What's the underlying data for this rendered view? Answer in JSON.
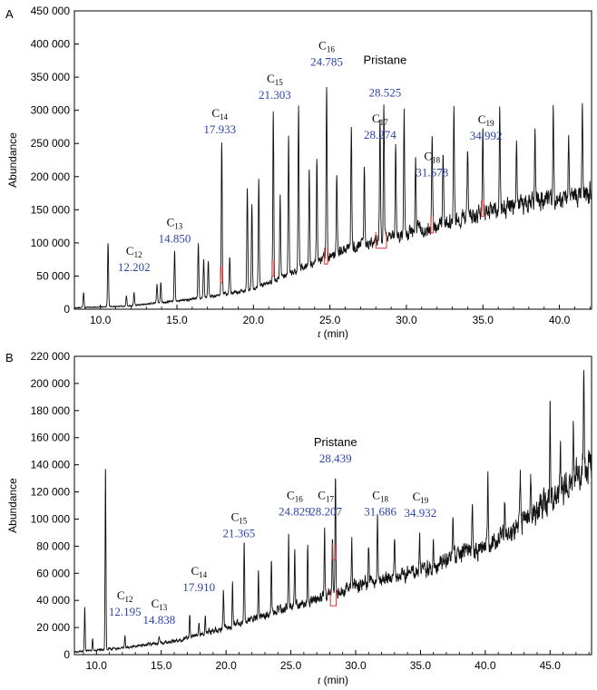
{
  "chart_data": [
    {
      "type": "line",
      "panel_label": "A",
      "xlabel_var": "t",
      "xlabel_unit": "(min)",
      "ylabel": "Abundance",
      "xlim": [
        8.3,
        42.1
      ],
      "ylim": [
        0,
        450000
      ],
      "x_ticks": [
        10.0,
        15.0,
        20.0,
        25.0,
        30.0,
        35.0,
        40.0
      ],
      "x_tick_labels": [
        "10.0",
        "15.0",
        "20.0",
        "25.0",
        "30.0",
        "35.0",
        "40.0"
      ],
      "y_ticks": [
        0,
        50000,
        100000,
        150000,
        200000,
        250000,
        300000,
        350000,
        400000,
        450000
      ],
      "y_tick_labels": [
        "0",
        "50 000",
        "100 000",
        "150 000",
        "200 000",
        "250 000",
        "300 000",
        "350 000",
        "400 000",
        "450 000"
      ],
      "baseline": [
        [
          8.3,
          2000
        ],
        [
          12,
          5000
        ],
        [
          16,
          15000
        ],
        [
          20,
          30000
        ],
        [
          23,
          60000
        ],
        [
          26,
          90000
        ],
        [
          30,
          115000
        ],
        [
          34,
          140000
        ],
        [
          38,
          160000
        ],
        [
          42.1,
          175000
        ]
      ],
      "peaks": [
        {
          "x": 8.9,
          "y": 25000
        },
        {
          "x": 10.5,
          "y": 100000
        },
        {
          "x": 11.7,
          "y": 20000
        },
        {
          "x": 12.2,
          "y": 25000
        },
        {
          "x": 13.7,
          "y": 38000
        },
        {
          "x": 13.95,
          "y": 40000
        },
        {
          "x": 14.85,
          "y": 88000
        },
        {
          "x": 16.4,
          "y": 100000
        },
        {
          "x": 16.75,
          "y": 75000
        },
        {
          "x": 17.05,
          "y": 70000
        },
        {
          "x": 17.93,
          "y": 253000
        },
        {
          "x": 18.45,
          "y": 80000
        },
        {
          "x": 19.6,
          "y": 185000
        },
        {
          "x": 19.9,
          "y": 160000
        },
        {
          "x": 20.35,
          "y": 200000
        },
        {
          "x": 21.3,
          "y": 300000
        },
        {
          "x": 21.75,
          "y": 170000
        },
        {
          "x": 22.3,
          "y": 260000
        },
        {
          "x": 22.95,
          "y": 305000
        },
        {
          "x": 23.65,
          "y": 215000
        },
        {
          "x": 24.15,
          "y": 230000
        },
        {
          "x": 24.785,
          "y": 335000
        },
        {
          "x": 25.45,
          "y": 200000
        },
        {
          "x": 26.4,
          "y": 275000
        },
        {
          "x": 27.25,
          "y": 215000
        },
        {
          "x": 28.274,
          "y": 285000
        },
        {
          "x": 28.525,
          "y": 305000
        },
        {
          "x": 29.3,
          "y": 250000
        },
        {
          "x": 29.85,
          "y": 300000
        },
        {
          "x": 30.6,
          "y": 230000
        },
        {
          "x": 31.678,
          "y": 265000
        },
        {
          "x": 32.4,
          "y": 230000
        },
        {
          "x": 33.1,
          "y": 300000
        },
        {
          "x": 34.0,
          "y": 245000
        },
        {
          "x": 34.992,
          "y": 270000
        },
        {
          "x": 36.1,
          "y": 300000
        },
        {
          "x": 37.2,
          "y": 250000
        },
        {
          "x": 38.4,
          "y": 265000
        },
        {
          "x": 39.6,
          "y": 300000
        },
        {
          "x": 40.6,
          "y": 260000
        },
        {
          "x": 41.5,
          "y": 300000
        },
        {
          "x": 42.0,
          "y": 190000
        }
      ],
      "annotations": [
        {
          "name": "C",
          "sub": "12",
          "time": "12.202",
          "x": 12.2,
          "y": 52000
        },
        {
          "name": "C",
          "sub": "13",
          "time": "14.850",
          "x": 14.85,
          "y": 95000
        },
        {
          "name": "C",
          "sub": "14",
          "time": "17.933",
          "x": 17.8,
          "y": 260000
        },
        {
          "name": "C",
          "sub": "15",
          "time": "21.303",
          "x": 21.4,
          "y": 312000
        },
        {
          "name": "C",
          "sub": "16",
          "time": "24.785",
          "x": 24.785,
          "y": 362000
        },
        {
          "name": "Pristane",
          "sub": "",
          "time": "",
          "x": 28.6,
          "y": 370000
        },
        {
          "name": "",
          "sub": "",
          "time": "28.525",
          "x": 28.6,
          "y": 315000
        },
        {
          "name": "C",
          "sub": "17",
          "time": "28.274",
          "x": 28.274,
          "y": 252000
        },
        {
          "name": "C",
          "sub": "18",
          "time": "31.678",
          "x": 31.678,
          "y": 195000
        },
        {
          "name": "C",
          "sub": "19",
          "time": "34.992",
          "x": 35.2,
          "y": 250000
        }
      ],
      "highlights": [
        {
          "x0": 17.85,
          "x1": 17.97,
          "y": 40000
        },
        {
          "x0": 21.22,
          "x1": 21.34,
          "y": 50000
        },
        {
          "x0": 24.65,
          "x1": 24.85,
          "y": 68000
        },
        {
          "x0": 28.0,
          "x1": 28.7,
          "y": 92000
        },
        {
          "x0": 31.6,
          "x1": 31.75,
          "y": 115000
        },
        {
          "x0": 34.9,
          "x1": 35.05,
          "y": 140000
        }
      ]
    },
    {
      "type": "line",
      "panel_label": "B",
      "xlabel_var": "t",
      "xlabel_unit": "(min)",
      "ylabel": "Abundance",
      "xlim": [
        8.3,
        48.2
      ],
      "ylim": [
        0,
        220000
      ],
      "x_ticks": [
        10.0,
        15.0,
        20.0,
        25.0,
        30.0,
        35.0,
        40.0,
        45.0
      ],
      "x_tick_labels": [
        "10.0",
        "15.0",
        "20.0",
        "25.0",
        "30.0",
        "35.0",
        "40.0",
        "45.0"
      ],
      "y_ticks": [
        0,
        20000,
        40000,
        60000,
        80000,
        100000,
        120000,
        140000,
        160000,
        180000,
        200000,
        220000
      ],
      "y_tick_labels": [
        "0",
        "20 000",
        "40 000",
        "60 000",
        "80 000",
        "100 000",
        "120 000",
        "140 000",
        "160 000",
        "180 000",
        "200 000",
        "220 000"
      ],
      "baseline": [
        [
          8.3,
          2000
        ],
        [
          12,
          5000
        ],
        [
          16,
          10000
        ],
        [
          20,
          20000
        ],
        [
          25,
          35000
        ],
        [
          30,
          50000
        ],
        [
          35,
          62000
        ],
        [
          40,
          80000
        ],
        [
          44,
          105000
        ],
        [
          48.2,
          140000
        ]
      ],
      "peaks": [
        {
          "x": 9.1,
          "y": 35000
        },
        {
          "x": 9.7,
          "y": 12000
        },
        {
          "x": 10.7,
          "y": 139000
        },
        {
          "x": 12.2,
          "y": 14000
        },
        {
          "x": 14.84,
          "y": 13000
        },
        {
          "x": 17.2,
          "y": 28000
        },
        {
          "x": 17.91,
          "y": 22000
        },
        {
          "x": 18.4,
          "y": 28000
        },
        {
          "x": 19.8,
          "y": 48000
        },
        {
          "x": 20.5,
          "y": 55000
        },
        {
          "x": 21.4,
          "y": 85000
        },
        {
          "x": 22.5,
          "y": 62000
        },
        {
          "x": 23.5,
          "y": 68000
        },
        {
          "x": 24.83,
          "y": 88000
        },
        {
          "x": 25.3,
          "y": 75000
        },
        {
          "x": 26.3,
          "y": 80000
        },
        {
          "x": 27.6,
          "y": 92000
        },
        {
          "x": 28.207,
          "y": 86000
        },
        {
          "x": 28.44,
          "y": 132000
        },
        {
          "x": 29.7,
          "y": 85000
        },
        {
          "x": 31.0,
          "y": 80000
        },
        {
          "x": 31.686,
          "y": 103000
        },
        {
          "x": 33.0,
          "y": 85000
        },
        {
          "x": 34.932,
          "y": 88000
        },
        {
          "x": 36.0,
          "y": 90000
        },
        {
          "x": 37.5,
          "y": 100000
        },
        {
          "x": 39.0,
          "y": 105000
        },
        {
          "x": 40.2,
          "y": 132000
        },
        {
          "x": 41.5,
          "y": 118000
        },
        {
          "x": 42.7,
          "y": 130000
        },
        {
          "x": 43.5,
          "y": 125000
        },
        {
          "x": 45.0,
          "y": 190000
        },
        {
          "x": 45.8,
          "y": 150000
        },
        {
          "x": 46.8,
          "y": 170000
        },
        {
          "x": 47.6,
          "y": 220000
        },
        {
          "x": 48.0,
          "y": 150000
        }
      ],
      "annotations": [
        {
          "name": "C",
          "sub": "12",
          "time": "12.195",
          "x": 12.2,
          "y": 26000
        },
        {
          "name": "C",
          "sub": "13",
          "time": "14.838",
          "x": 14.84,
          "y": 20000
        },
        {
          "name": "C",
          "sub": "14",
          "time": "17.910",
          "x": 17.91,
          "y": 44000
        },
        {
          "name": "C",
          "sub": "15",
          "time": "21.365",
          "x": 21.0,
          "y": 84000
        },
        {
          "name": "C",
          "sub": "16",
          "time": "24.829",
          "x": 25.3,
          "y": 100000
        },
        {
          "name": "C",
          "sub": "17",
          "time": "28.207",
          "x": 27.7,
          "y": 100000
        },
        {
          "name": "Pristane",
          "sub": "",
          "time": "28.439",
          "x": 28.44,
          "y": 139000
        },
        {
          "name": "C",
          "sub": "18",
          "time": "31.686",
          "x": 31.9,
          "y": 100000
        },
        {
          "name": "C",
          "sub": "19",
          "time": "34.932",
          "x": 35.0,
          "y": 99000
        }
      ],
      "highlights": [
        {
          "x0": 28.05,
          "x1": 28.5,
          "y": 36000
        },
        {
          "x0": 28.2,
          "x1": 28.5,
          "y": 70000
        }
      ]
    }
  ]
}
